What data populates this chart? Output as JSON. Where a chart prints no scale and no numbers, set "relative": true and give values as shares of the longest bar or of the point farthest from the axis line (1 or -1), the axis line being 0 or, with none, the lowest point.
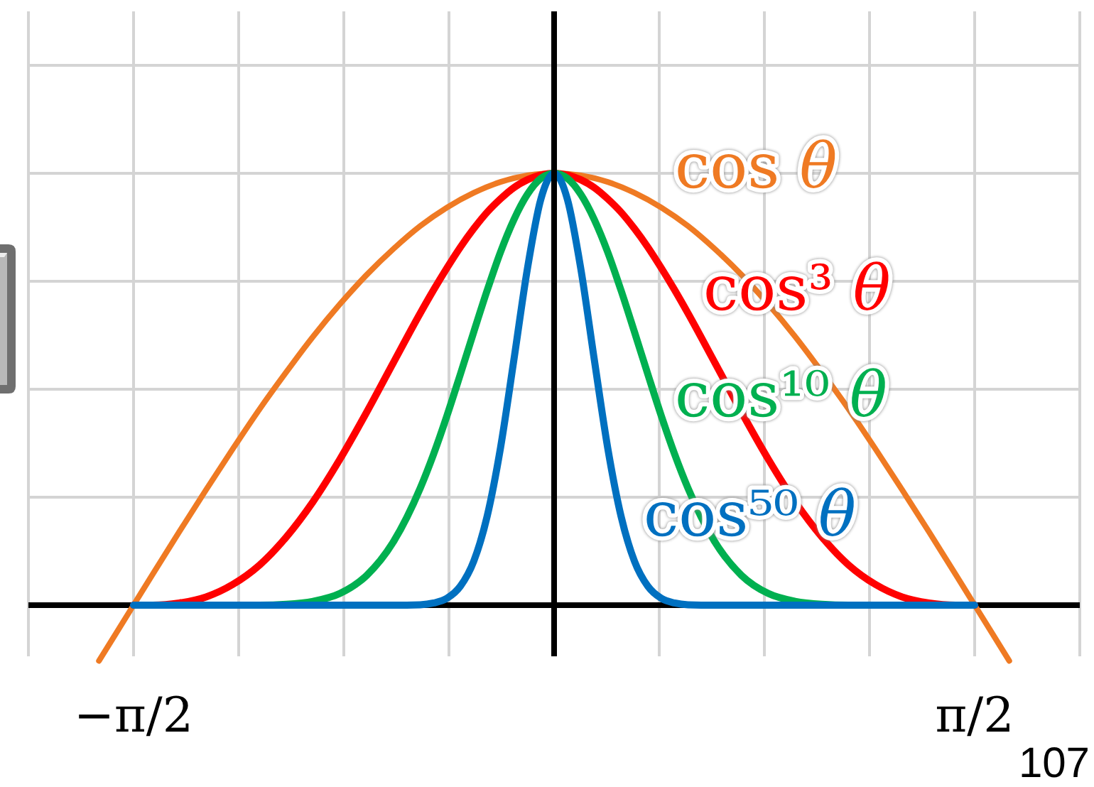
{
  "chart_data": {
    "type": "line",
    "relative": true,
    "grid": true,
    "xlim": [
      -1.9635,
      1.9635
    ],
    "xticks": [
      {
        "value": -1.9635,
        "label": null
      },
      {
        "value": -1.5708,
        "label": "−π/2"
      },
      {
        "value": -1.1781,
        "label": null
      },
      {
        "value": -0.7854,
        "label": null
      },
      {
        "value": -0.3927,
        "label": null
      },
      {
        "value": 0.3927,
        "label": null
      },
      {
        "value": 0.7854,
        "label": null
      },
      {
        "value": 1.1781,
        "label": null
      },
      {
        "value": 1.5708,
        "label": "π/2"
      },
      {
        "value": 1.9635,
        "label": null
      }
    ],
    "x": [
      -1.571,
      -1.5,
      -1.4,
      -1.3,
      -1.2,
      -1.1,
      -1.0,
      -0.9,
      -0.8,
      -0.7,
      -0.6,
      -0.5,
      -0.45,
      -0.4,
      -0.35,
      -0.3,
      -0.25,
      -0.2,
      -0.15,
      -0.1,
      -0.05,
      0,
      0.05,
      0.1,
      0.15,
      0.2,
      0.25,
      0.3,
      0.35,
      0.4,
      0.45,
      0.5,
      0.6,
      0.7,
      0.8,
      0.9,
      1.0,
      1.1,
      1.2,
      1.3,
      1.4,
      1.5,
      1.571
    ],
    "series": [
      {
        "name": "cos θ",
        "color": "#ef7a23",
        "x": [
          -1.7,
          -1.571,
          -1.5,
          -1.4,
          -1.3,
          -1.2,
          -1.1,
          -1.0,
          -0.9,
          -0.8,
          -0.7,
          -0.6,
          -0.5,
          -0.4,
          -0.3,
          -0.2,
          -0.1,
          0,
          0.1,
          0.2,
          0.3,
          0.4,
          0.5,
          0.6,
          0.7,
          0.8,
          0.9,
          1.0,
          1.1,
          1.2,
          1.3,
          1.4,
          1.5,
          1.571,
          1.7
        ],
        "values": [
          -0.129,
          0,
          0.071,
          0.17,
          0.267,
          0.362,
          0.454,
          0.54,
          0.622,
          0.697,
          0.765,
          0.825,
          0.878,
          0.921,
          0.955,
          0.98,
          0.995,
          1,
          0.995,
          0.98,
          0.955,
          0.921,
          0.878,
          0.825,
          0.765,
          0.697,
          0.622,
          0.54,
          0.454,
          0.362,
          0.267,
          0.17,
          0.071,
          0,
          -0.129
        ]
      },
      {
        "name": "cos³ θ",
        "color": "#ff0000",
        "values": [
          0,
          0,
          0.005,
          0.019,
          0.048,
          0.093,
          0.158,
          0.24,
          0.338,
          0.447,
          0.562,
          0.676,
          0.73,
          0.781,
          0.829,
          0.872,
          0.91,
          0.941,
          0.967,
          0.985,
          0.996,
          1,
          0.996,
          0.985,
          0.967,
          0.941,
          0.91,
          0.872,
          0.829,
          0.781,
          0.73,
          0.676,
          0.562,
          0.447,
          0.338,
          0.24,
          0.158,
          0.093,
          0.048,
          0.019,
          0.005,
          0,
          0
        ]
      },
      {
        "name": "cos¹⁰ θ",
        "color": "#00b050",
        "values": [
          null,
          null,
          null,
          null,
          0,
          0,
          0.002,
          0.009,
          0.027,
          0.069,
          0.147,
          0.271,
          0.35,
          0.439,
          0.535,
          0.633,
          0.729,
          0.818,
          0.893,
          0.951,
          0.988,
          1,
          0.988,
          0.951,
          0.893,
          0.818,
          0.729,
          0.633,
          0.535,
          0.439,
          0.35,
          0.271,
          0.147,
          0.069,
          0.027,
          0.009,
          0.002,
          0,
          0,
          null,
          null,
          null,
          null
        ]
      },
      {
        "name": "cos⁵⁰ θ",
        "color": "#0070c0",
        "values": [
          0,
          0,
          0,
          0,
          0,
          0,
          0,
          0,
          0,
          0,
          0,
          0.001,
          0.005,
          0.016,
          0.044,
          0.102,
          0.206,
          0.365,
          0.569,
          0.778,
          0.939,
          1,
          0.939,
          0.778,
          0.569,
          0.365,
          0.206,
          0.102,
          0.044,
          0.016,
          0.005,
          0.001,
          0,
          0,
          0,
          0,
          0,
          0,
          0,
          0,
          0,
          0,
          0
        ]
      }
    ],
    "annotations": [
      "107"
    ]
  }
}
